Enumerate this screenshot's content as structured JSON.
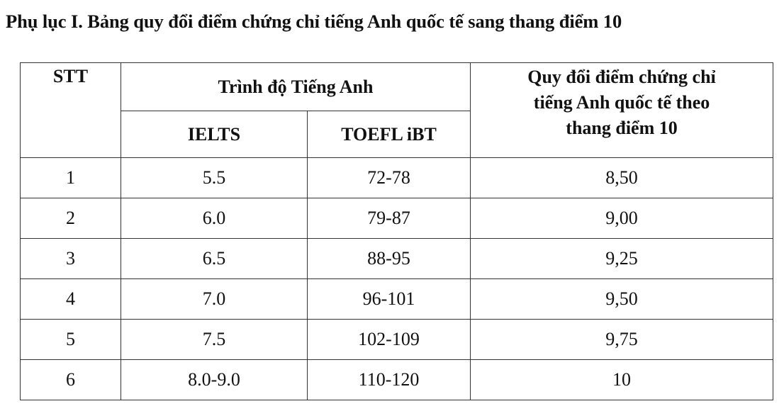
{
  "title": "Phụ lục I. Bảng quy đổi điểm chứng chỉ tiếng Anh quốc tế sang thang điểm 10",
  "table": {
    "headers": {
      "stt": "STT",
      "level_group": "Trình độ Tiếng Anh",
      "ielts": "IELTS",
      "toefl": "TOEFL iBT",
      "conversion_line1": "Quy đổi điểm chứng chỉ",
      "conversion_line2": "tiếng Anh quốc tế theo",
      "conversion_line3": "thang điểm 10"
    },
    "rows": [
      {
        "stt": "1",
        "ielts": "5.5",
        "toefl": "72-78",
        "score": "8,50"
      },
      {
        "stt": "2",
        "ielts": "6.0",
        "toefl": "79-87",
        "score": "9,00"
      },
      {
        "stt": "3",
        "ielts": "6.5",
        "toefl": "88-95",
        "score": "9,25"
      },
      {
        "stt": "4",
        "ielts": "7.0",
        "toefl": "96-101",
        "score": "9,50"
      },
      {
        "stt": "5",
        "ielts": "7.5",
        "toefl": "102-109",
        "score": "9,75"
      },
      {
        "stt": "6",
        "ielts": "8.0-9.0",
        "toefl": "110-120",
        "score": "10"
      }
    ]
  }
}
